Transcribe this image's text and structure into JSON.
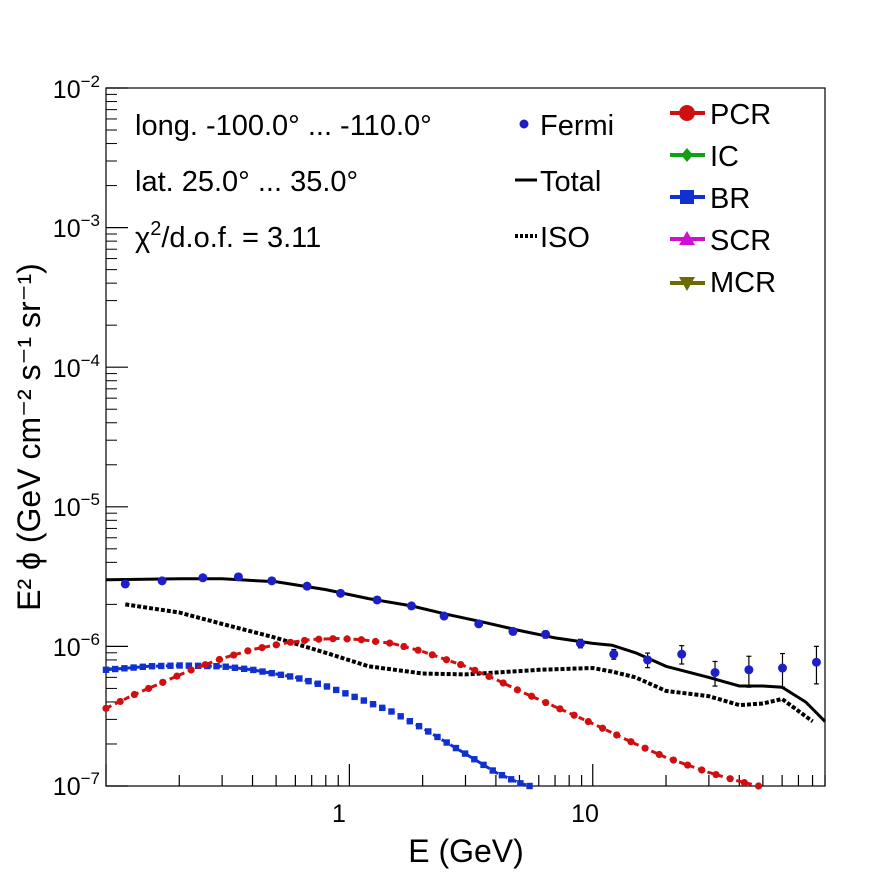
{
  "chart_data": {
    "type": "line",
    "x_scale": "log",
    "y_scale": "log",
    "xlim": [
      0.1,
      90
    ],
    "ylim": [
      1e-07,
      0.01
    ],
    "xlabel": "E (GeV)",
    "ylabel": "E² ϕ (GeV cm⁻² s⁻¹ sr⁻¹)",
    "x_tick_labels": [
      "1",
      "10"
    ],
    "y_tick_labels": [
      {
        "base": "10",
        "exp": "−7"
      },
      {
        "base": "10",
        "exp": "−6"
      },
      {
        "base": "10",
        "exp": "−5"
      },
      {
        "base": "10",
        "exp": "−4"
      },
      {
        "base": "10",
        "exp": "−3"
      },
      {
        "base": "10",
        "exp": "−2"
      }
    ],
    "annotations": {
      "longitude": "long. -100.0° ... -110.0°",
      "latitude": "lat. 25.0° ... 35.0°",
      "chi2_symbol": "χ",
      "chi2_sup": "2",
      "chi2_rest": "/d.o.f. = 3.11"
    },
    "legend": {
      "fermi": "Fermi",
      "total": "Total",
      "iso": "ISO",
      "pcr": "PCR",
      "ic": "IC",
      "br": "BR",
      "scr": "SCR",
      "mcr": "MCR"
    },
    "colors": {
      "fermi": "#1f1fc8",
      "pcr": "#d01010",
      "ic": "#10a010",
      "br": "#1030d0",
      "scr": "#d010d0",
      "mcr": "#6b6b00",
      "total": "#000000",
      "iso": "#000000"
    },
    "fermi": {
      "x": [
        0.12,
        0.17,
        0.25,
        0.35,
        0.48,
        0.67,
        0.92,
        1.3,
        1.8,
        2.45,
        3.4,
        4.7,
        6.4,
        8.9,
        12.2,
        16.8,
        23.2,
        31.8,
        43.8,
        60.2,
        83.0
      ],
      "y": [
        2.8e-06,
        2.95e-06,
        3.1e-06,
        3.15e-06,
        2.95e-06,
        2.7e-06,
        2.4e-06,
        2.15e-06,
        1.95e-06,
        1.65e-06,
        1.45e-06,
        1.28e-06,
        1.22e-06,
        1.05e-06,
        8.8e-07,
        8e-07,
        8.8e-07,
        6.5e-07,
        6.8e-07,
        7e-07,
        7.7e-07
      ],
      "err_rel": [
        0.02,
        0.02,
        0.02,
        0.02,
        0.02,
        0.02,
        0.02,
        0.03,
        0.03,
        0.03,
        0.04,
        0.05,
        0.06,
        0.07,
        0.08,
        0.12,
        0.15,
        0.2,
        0.25,
        0.27,
        0.3
      ]
    },
    "series": [
      {
        "name": "Total",
        "style": "solid",
        "x": [
          0.1,
          0.2,
          0.3,
          0.5,
          0.8,
          1.2,
          1.8,
          2.5,
          3.5,
          5,
          7,
          10,
          12,
          15,
          20,
          30,
          40,
          50,
          60,
          75,
          90
        ],
        "y": [
          3e-06,
          3.05e-06,
          3.05e-06,
          2.9e-06,
          2.55e-06,
          2.2e-06,
          1.95e-06,
          1.7e-06,
          1.5e-06,
          1.3e-06,
          1.15e-06,
          1.05e-06,
          1.02e-06,
          9e-07,
          7.2e-07,
          6e-07,
          5.2e-07,
          5.2e-07,
          5.1e-07,
          4e-07,
          2.9e-07
        ]
      },
      {
        "name": "ISO",
        "style": "dotted",
        "x": [
          0.12,
          0.2,
          0.3,
          0.5,
          0.8,
          1.2,
          2,
          3,
          4,
          6,
          10,
          12,
          15,
          20,
          30,
          40,
          50,
          60,
          80
        ],
        "y": [
          2e-06,
          1.75e-06,
          1.45e-06,
          1.15e-06,
          9e-07,
          7.2e-07,
          6.4e-07,
          6.3e-07,
          6.5e-07,
          6.8e-07,
          7e-07,
          6.6e-07,
          6e-07,
          4.8e-07,
          4.4e-07,
          3.8e-07,
          3.9e-07,
          4.2e-07,
          2.9e-07
        ]
      },
      {
        "name": "PCR",
        "style": "markers-line",
        "x": [
          0.1,
          0.13,
          0.17,
          0.22,
          0.3,
          0.4,
          0.55,
          0.7,
          0.9,
          1.1,
          1.5,
          2,
          3,
          4,
          5,
          7,
          10,
          15,
          20,
          30,
          40,
          48
        ],
        "y": [
          3.6e-07,
          4.5e-07,
          5.5e-07,
          6.7e-07,
          8.2e-07,
          9.5e-07,
          1.06e-06,
          1.12e-06,
          1.14e-06,
          1.12e-06,
          1.05e-06,
          9.2e-07,
          7.2e-07,
          5.8e-07,
          4.8e-07,
          3.7e-07,
          2.8e-07,
          2e-07,
          1.6e-07,
          1.25e-07,
          1.08e-07,
          1e-07
        ]
      },
      {
        "name": "BR",
        "style": "markers-line",
        "x": [
          0.1,
          0.15,
          0.2,
          0.3,
          0.4,
          0.6,
          0.8,
          1,
          1.5,
          2,
          3,
          4,
          5,
          5.5
        ],
        "y": [
          6.8e-07,
          7.2e-07,
          7.3e-07,
          7.2e-07,
          6.8e-07,
          6e-07,
          5.2e-07,
          4.5e-07,
          3.4e-07,
          2.6e-07,
          1.7e-07,
          1.25e-07,
          1.05e-07,
          1e-07
        ]
      }
    ]
  }
}
